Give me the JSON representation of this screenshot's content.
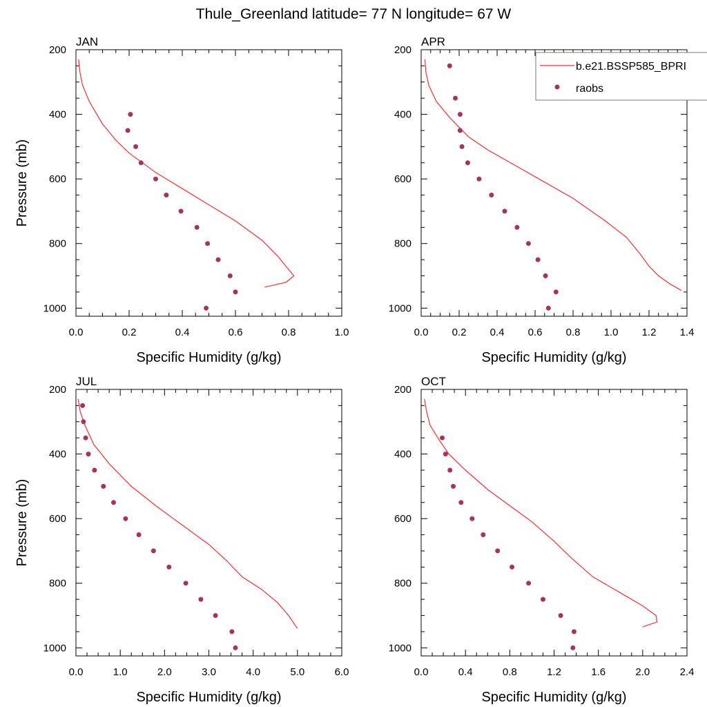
{
  "figure": {
    "title": "Thule_Greenland  latitude= 77 N longitude= 67 W"
  },
  "colors": {
    "model_line": "#ff2a2a",
    "obs_marker": "#a8325a",
    "axis": "#000000"
  },
  "legend": {
    "placement": "top-right of APR panel",
    "entries": [
      {
        "label": "b.e21.BSSP585_BPRI",
        "style": "line"
      },
      {
        "label": "raobs",
        "style": "marker"
      }
    ]
  },
  "chart_data": [
    {
      "type": "line",
      "title": "JAN",
      "xlabel": "Specific Humidity (g/kg)",
      "ylabel": "Pressure (mb)",
      "xlim": [
        0,
        1.0
      ],
      "ylim": [
        200,
        1025
      ],
      "y_inverted": true,
      "xticks": [
        0,
        0.2,
        0.4,
        0.6,
        0.8,
        1.0
      ],
      "xtick_labels": [
        "0.0",
        "0.2",
        "0.4",
        "0.6",
        "0.8",
        "1.0"
      ],
      "yticks": [
        200,
        400,
        600,
        800,
        1000
      ],
      "ytick_labels": [
        "200",
        "400",
        "600",
        "800",
        "1000"
      ],
      "series": [
        {
          "name": "b.e21.BSSP585_BPRI",
          "style": "line",
          "points": [
            [
              0.01,
              230
            ],
            [
              0.015,
              270
            ],
            [
              0.025,
              310
            ],
            [
              0.05,
              360
            ],
            [
              0.1,
              430
            ],
            [
              0.15,
              480
            ],
            [
              0.2,
              520
            ],
            [
              0.3,
              580
            ],
            [
              0.4,
              630
            ],
            [
              0.5,
              680
            ],
            [
              0.6,
              730
            ],
            [
              0.7,
              790
            ],
            [
              0.76,
              840
            ],
            [
              0.8,
              880
            ],
            [
              0.82,
              900
            ],
            [
              0.79,
              920
            ],
            [
              0.71,
              935
            ]
          ]
        },
        {
          "name": "raobs",
          "style": "marker",
          "points": [
            [
              0.205,
              400
            ],
            [
              0.195,
              450
            ],
            [
              0.225,
              500
            ],
            [
              0.245,
              550
            ],
            [
              0.3,
              600
            ],
            [
              0.34,
              650
            ],
            [
              0.395,
              700
            ],
            [
              0.455,
              750
            ],
            [
              0.495,
              800
            ],
            [
              0.535,
              850
            ],
            [
              0.58,
              900
            ],
            [
              0.6,
              950
            ],
            [
              0.49,
              1000
            ]
          ]
        }
      ]
    },
    {
      "type": "line",
      "title": "APR",
      "xlabel": "Specific Humidity (g/kg)",
      "ylabel": "",
      "xlim": [
        0,
        1.4
      ],
      "ylim": [
        200,
        1025
      ],
      "y_inverted": true,
      "xticks": [
        0,
        0.2,
        0.4,
        0.6,
        0.8,
        1.0,
        1.2,
        1.4
      ],
      "xtick_labels": [
        "0.0",
        "0.2",
        "0.4",
        "0.6",
        "0.8",
        "1.0",
        "1.2",
        "1.4"
      ],
      "yticks": [
        200,
        400,
        600,
        800,
        1000
      ],
      "ytick_labels": [
        "200",
        "400",
        "600",
        "800",
        "1000"
      ],
      "series": [
        {
          "name": "b.e21.BSSP585_BPRI",
          "style": "line",
          "points": [
            [
              0.02,
              230
            ],
            [
              0.025,
              270
            ],
            [
              0.04,
              310
            ],
            [
              0.08,
              360
            ],
            [
              0.15,
              410
            ],
            [
              0.2,
              440
            ],
            [
              0.25,
              470
            ],
            [
              0.35,
              510
            ],
            [
              0.5,
              560
            ],
            [
              0.65,
              610
            ],
            [
              0.8,
              660
            ],
            [
              0.97,
              730
            ],
            [
              1.08,
              780
            ],
            [
              1.15,
              830
            ],
            [
              1.2,
              870
            ],
            [
              1.25,
              900
            ],
            [
              1.31,
              925
            ],
            [
              1.37,
              945
            ]
          ]
        },
        {
          "name": "raobs",
          "style": "marker",
          "points": [
            [
              0.15,
              250
            ],
            [
              0.18,
              350
            ],
            [
              0.205,
              400
            ],
            [
              0.205,
              450
            ],
            [
              0.215,
              500
            ],
            [
              0.245,
              550
            ],
            [
              0.305,
              600
            ],
            [
              0.37,
              650
            ],
            [
              0.44,
              700
            ],
            [
              0.505,
              750
            ],
            [
              0.565,
              800
            ],
            [
              0.615,
              850
            ],
            [
              0.655,
              900
            ],
            [
              0.71,
              950
            ],
            [
              0.67,
              1000
            ]
          ]
        }
      ]
    },
    {
      "type": "line",
      "title": "JUL",
      "xlabel": "Specific Humidity (g/kg)",
      "ylabel": "Pressure (mb)",
      "xlim": [
        0,
        6.0
      ],
      "ylim": [
        200,
        1025
      ],
      "y_inverted": true,
      "xticks": [
        0,
        1,
        2,
        3,
        4,
        5,
        6
      ],
      "xtick_labels": [
        "0.0",
        "1.0",
        "2.0",
        "3.0",
        "4.0",
        "5.0",
        "6.0"
      ],
      "yticks": [
        200,
        400,
        600,
        800,
        1000
      ],
      "ytick_labels": [
        "200",
        "400",
        "600",
        "800",
        "1000"
      ],
      "series": [
        {
          "name": "b.e21.BSSP585_BPRI",
          "style": "line",
          "points": [
            [
              0.05,
              230
            ],
            [
              0.1,
              270
            ],
            [
              0.2,
              310
            ],
            [
              0.4,
              370
            ],
            [
              0.75,
              430
            ],
            [
              1.25,
              500
            ],
            [
              1.8,
              560
            ],
            [
              2.4,
              620
            ],
            [
              3.0,
              680
            ],
            [
              3.4,
              730
            ],
            [
              3.75,
              780
            ],
            [
              4.2,
              820
            ],
            [
              4.55,
              860
            ],
            [
              4.8,
              900
            ],
            [
              5.0,
              940
            ]
          ]
        },
        {
          "name": "raobs",
          "style": "marker",
          "points": [
            [
              0.15,
              250
            ],
            [
              0.17,
              300
            ],
            [
              0.22,
              350
            ],
            [
              0.28,
              400
            ],
            [
              0.42,
              450
            ],
            [
              0.62,
              500
            ],
            [
              0.85,
              550
            ],
            [
              1.12,
              600
            ],
            [
              1.42,
              650
            ],
            [
              1.75,
              700
            ],
            [
              2.1,
              750
            ],
            [
              2.48,
              800
            ],
            [
              2.82,
              850
            ],
            [
              3.15,
              900
            ],
            [
              3.52,
              950
            ],
            [
              3.6,
              1000
            ]
          ]
        }
      ]
    },
    {
      "type": "line",
      "title": "OCT",
      "xlabel": "Specific Humidity (g/kg)",
      "ylabel": "",
      "xlim": [
        0,
        2.4
      ],
      "ylim": [
        200,
        1025
      ],
      "y_inverted": true,
      "xticks": [
        0,
        0.4,
        0.8,
        1.2,
        1.6,
        2.0,
        2.4
      ],
      "xtick_labels": [
        "0.0",
        "0.4",
        "0.8",
        "1.2",
        "1.6",
        "2.0",
        "2.4"
      ],
      "yticks": [
        200,
        400,
        600,
        800,
        1000
      ],
      "ytick_labels": [
        "200",
        "400",
        "600",
        "800",
        "1000"
      ],
      "series": [
        {
          "name": "b.e21.BSSP585_BPRI",
          "style": "line",
          "points": [
            [
              0.03,
              230
            ],
            [
              0.05,
              270
            ],
            [
              0.08,
              310
            ],
            [
              0.15,
              350
            ],
            [
              0.25,
              400
            ],
            [
              0.4,
              450
            ],
            [
              0.6,
              510
            ],
            [
              0.8,
              560
            ],
            [
              1.0,
              610
            ],
            [
              1.2,
              670
            ],
            [
              1.35,
              720
            ],
            [
              1.55,
              780
            ],
            [
              1.8,
              830
            ],
            [
              2.0,
              870
            ],
            [
              2.12,
              900
            ],
            [
              2.13,
              920
            ],
            [
              2.0,
              935
            ]
          ]
        },
        {
          "name": "raobs",
          "style": "marker",
          "points": [
            [
              0.19,
              350
            ],
            [
              0.22,
              400
            ],
            [
              0.26,
              450
            ],
            [
              0.29,
              500
            ],
            [
              0.36,
              550
            ],
            [
              0.46,
              600
            ],
            [
              0.56,
              650
            ],
            [
              0.69,
              700
            ],
            [
              0.82,
              750
            ],
            [
              0.97,
              800
            ],
            [
              1.1,
              850
            ],
            [
              1.26,
              900
            ],
            [
              1.38,
              950
            ],
            [
              1.37,
              1000
            ]
          ]
        }
      ]
    }
  ]
}
